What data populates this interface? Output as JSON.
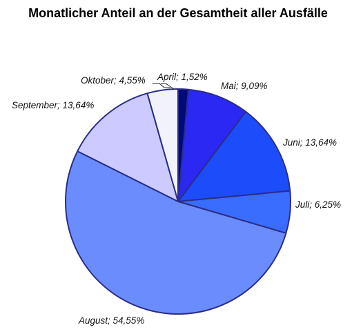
{
  "chart_data": {
    "type": "pie",
    "title": "Monatlicher Anteil an der Gesamtheit aller Ausfälle",
    "start_angle_deg": 0,
    "direction": "clockwise",
    "slices": [
      {
        "label": "April",
        "value": 1.52,
        "value_text": "1,52%",
        "color": "#000a7a"
      },
      {
        "label": "Mai",
        "value": 9.09,
        "value_text": "9,09%",
        "color": "#2a28f2"
      },
      {
        "label": "Juni",
        "value": 13.64,
        "value_text": "13,64%",
        "color": "#1d4dfb"
      },
      {
        "label": "Juli",
        "value": 6.25,
        "value_text": "6,25%",
        "color": "#3a6cfe"
      },
      {
        "label": "August",
        "value": 54.55,
        "value_text": "54,55%",
        "color": "#6b8cfd"
      },
      {
        "label": "September",
        "value": 13.64,
        "value_text": "13,64%",
        "color": "#cccaff"
      },
      {
        "label": "Oktober",
        "value": 4.55,
        "value_text": "4,55%",
        "color": "#f2f2fd"
      }
    ],
    "border_color": "#2b2d86"
  }
}
